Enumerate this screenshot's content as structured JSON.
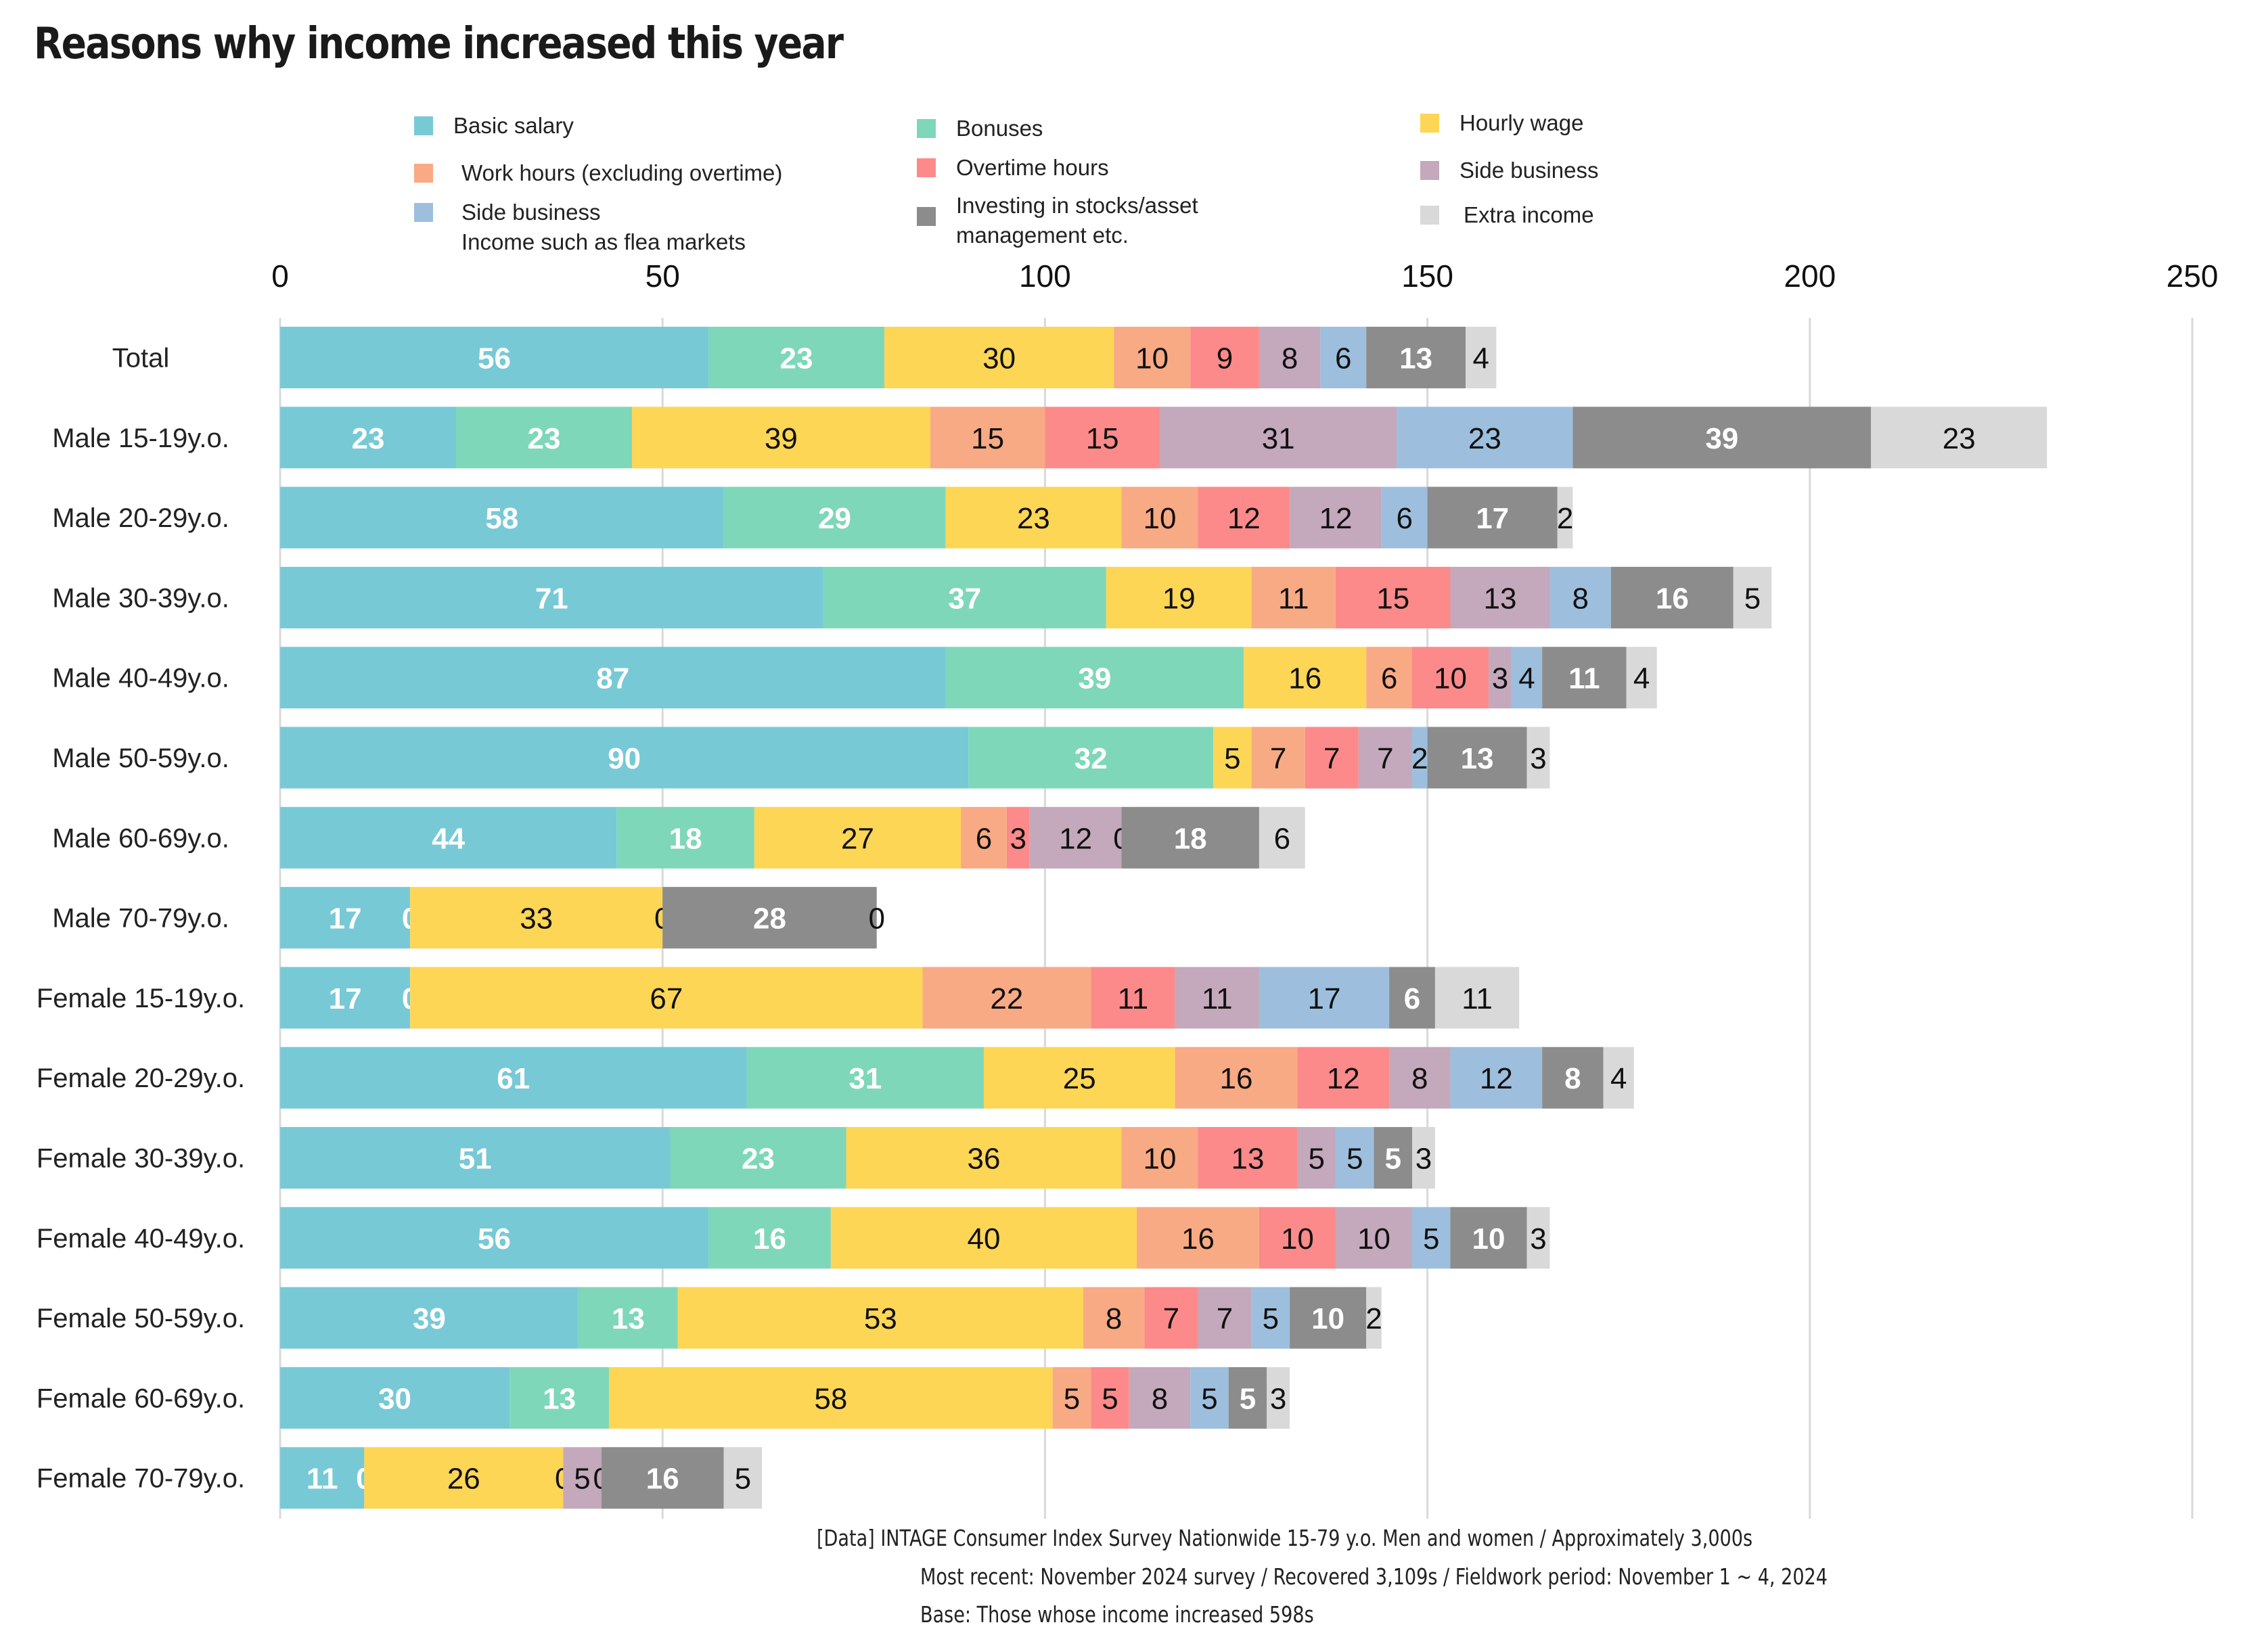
{
  "chart_data": {
    "type": "bar",
    "orientation": "horizontal",
    "stacked": true,
    "title": "Reasons why income increased this year",
    "xlabel": "",
    "ylabel": "",
    "xlim": [
      0,
      250
    ],
    "xticks": [
      0,
      50,
      100,
      150,
      200,
      250
    ],
    "grid": true,
    "legend_position": "top",
    "categories": [
      "Total",
      "Male 15-19y.o.",
      "Male 20-29y.o.",
      "Male 30-39y.o.",
      "Male 40-49y.o.",
      "Male 50-59y.o.",
      "Male 60-69y.o.",
      "Male 70-79y.o.",
      "Female 15-19y.o.",
      "Female 20-29y.o.",
      "Female 30-39y.o.",
      "Female 40-49y.o.",
      "Female 50-59y.o.",
      "Female 60-69y.o.",
      "Female 70-79y.o."
    ],
    "series": [
      {
        "name": "Basic salary",
        "color": "#78C9D6",
        "label_color": "#ffffff",
        "bold": true,
        "values": [
          56,
          23,
          58,
          71,
          87,
          90,
          44,
          17,
          17,
          61,
          51,
          56,
          39,
          30,
          11
        ]
      },
      {
        "name": "Bonuses",
        "color": "#7FD7BA",
        "label_color": "#ffffff",
        "bold": true,
        "values": [
          23,
          23,
          29,
          37,
          39,
          32,
          18,
          0,
          0,
          31,
          23,
          16,
          13,
          13,
          0
        ]
      },
      {
        "name": "Hourly wage",
        "color": "#FDD655",
        "label_color": "#111111",
        "bold": false,
        "values": [
          30,
          39,
          23,
          19,
          16,
          5,
          27,
          33,
          67,
          25,
          36,
          40,
          53,
          58,
          26
        ]
      },
      {
        "name": "Work hours (excluding overtime)",
        "color": "#F8AA84",
        "label_color": "#111111",
        "bold": false,
        "values": [
          10,
          15,
          10,
          11,
          6,
          7,
          6,
          0,
          22,
          16,
          10,
          16,
          8,
          5,
          0
        ]
      },
      {
        "name": "Overtime hours",
        "color": "#FC8A8A",
        "label_color": "#111111",
        "bold": false,
        "values": [
          9,
          15,
          12,
          15,
          10,
          7,
          3,
          0,
          11,
          12,
          13,
          10,
          7,
          5,
          0
        ]
      },
      {
        "name": "Side business",
        "color": "#C4A8BC",
        "label_color": "#111111",
        "bold": false,
        "values": [
          8,
          31,
          12,
          13,
          3,
          7,
          12,
          0,
          11,
          8,
          5,
          10,
          7,
          8,
          5
        ]
      },
      {
        "name": "Side business\nIncome such as flea markets",
        "color": "#9DBFDD",
        "label_color": "#111111",
        "bold": false,
        "values": [
          6,
          23,
          6,
          8,
          4,
          2,
          0,
          0,
          17,
          12,
          5,
          5,
          5,
          5,
          0
        ]
      },
      {
        "name": "Investing in stocks/asset\nmanagement etc.",
        "color": "#8C8C8C",
        "label_color": "#ffffff",
        "bold": true,
        "values": [
          13,
          39,
          17,
          16,
          11,
          13,
          18,
          28,
          6,
          8,
          5,
          10,
          10,
          5,
          16
        ]
      },
      {
        "name": "Extra income",
        "color": "#D9D9D9",
        "label_color": "#111111",
        "bold": false,
        "values": [
          4,
          23,
          2,
          5,
          4,
          3,
          6,
          0,
          11,
          4,
          3,
          3,
          2,
          3,
          5
        ]
      }
    ],
    "hidden_labels": {
      "Male 70-79y.o.": [
        "Work hours (excluding overtime)",
        "Overtime hours",
        "Side business"
      ],
      "Female 70-79y.o.": [
        "Overtime hours"
      ]
    }
  },
  "legend": [
    {
      "label": "Basic salary",
      "color": "#78C9D6"
    },
    {
      "label": "Bonuses",
      "color": "#7FD7BA"
    },
    {
      "label": "Hourly wage",
      "color": "#FDD655"
    },
    {
      "label": "Work hours (excluding overtime)",
      "color": "#F8AA84"
    },
    {
      "label": "Overtime hours",
      "color": "#FC8A8A"
    },
    {
      "label": "Side business",
      "color": "#C4A8BC"
    },
    {
      "label": "Side business\nIncome such as flea markets",
      "color": "#9DBFDD"
    },
    {
      "label": "Investing in stocks/asset\nmanagement etc.",
      "color": "#8C8C8C"
    },
    {
      "label": "Extra income",
      "color": "#D9D9D9"
    }
  ],
  "footer": {
    "line1": "[Data] INTAGE Consumer Index Survey Nationwide 15-79 y.o. Men and women / Approximately 3,000s",
    "line2": "Most recent: November 2024 survey / Recovered 3,109s / Fieldwork period: November 1 ~ 4, 2024",
    "line3": "Base: Those whose income increased    598s"
  },
  "colors": {
    "gridline": "#D9D9D9",
    "text": "#222222"
  }
}
